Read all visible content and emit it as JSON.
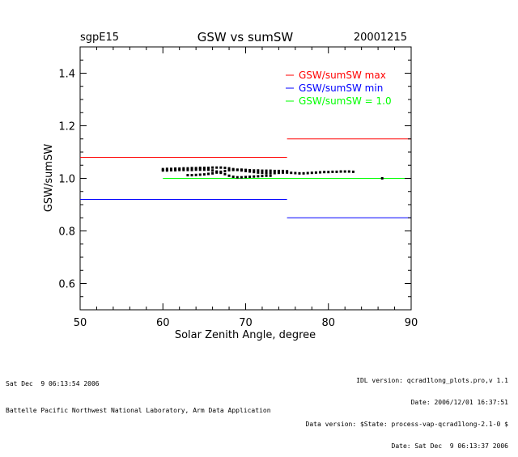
{
  "header": {
    "site": "sgpE15",
    "date": "20001215"
  },
  "footer": {
    "left_line1": "Sat Dec  9 06:13:54 2006",
    "left_line2": "Battelle Pacific Northwest National Laboratory, Arm Data Application",
    "right_line1": "IDL version: qcrad1long_plots.pro,v 1.1",
    "right_line2": "Date: 2006/12/01 16:37:51",
    "right_line3": "Data version: $State: process-vap-qcrad1long-2.1-0 $",
    "right_line4": "Date: Sat Dec  9 06:13:37 2006"
  },
  "chart_data": {
    "type": "scatter",
    "title": "GSW vs sumSW",
    "xlabel": "Solar Zenith Angle, degree",
    "ylabel": "GSW/sumSW",
    "xlim": [
      50,
      90
    ],
    "ylim": [
      0.5,
      1.5
    ],
    "x_ticks": [
      50,
      60,
      70,
      80,
      90
    ],
    "y_ticks": [
      0.6,
      0.8,
      1.0,
      1.2,
      1.4
    ],
    "x_tick_labels": [
      "50",
      "60",
      "70",
      "80",
      "90"
    ],
    "y_tick_labels": [
      "0.6",
      "0.8",
      "1.0",
      "1.2",
      "1.4"
    ],
    "grid": false,
    "legend_position": "top-right",
    "legend": [
      {
        "label": "GSW/sumSW max",
        "color": "#ff0000"
      },
      {
        "label": "GSW/sumSW min",
        "color": "#0000ff"
      },
      {
        "label": "GSW/sumSW = 1.0",
        "color": "#00ff00"
      }
    ],
    "threshold_lines": [
      {
        "series": "max",
        "color": "#ff0000",
        "segments": [
          {
            "x": [
              50,
              75
            ],
            "y": 1.08
          },
          {
            "x": [
              75,
              90
            ],
            "y": 1.15
          }
        ]
      },
      {
        "series": "min",
        "color": "#0000ff",
        "segments": [
          {
            "x": [
              50,
              75
            ],
            "y": 0.92
          },
          {
            "x": [
              75,
              90
            ],
            "y": 0.85
          }
        ]
      },
      {
        "series": "one",
        "color": "#00ff00",
        "segments": [
          {
            "x": [
              60,
              90
            ],
            "y": 1.0
          }
        ]
      }
    ],
    "points": {
      "color": "#000000",
      "x": [
        60.0,
        60.5,
        61.0,
        61.5,
        62.0,
        62.5,
        63.0,
        63.5,
        64.0,
        64.5,
        65.0,
        65.5,
        66.0,
        66.5,
        67.0,
        67.5,
        68.0,
        68.5,
        69.0,
        69.5,
        70.0,
        70.5,
        71.0,
        71.5,
        72.0,
        72.5,
        73.0,
        73.5,
        74.0,
        74.5,
        75.0,
        75.5,
        76.0,
        76.5,
        77.0,
        77.5,
        78.0,
        78.5,
        79.0,
        79.5,
        80.0,
        80.5,
        81.0,
        81.5,
        82.0,
        82.5,
        83.0,
        63.0,
        63.5,
        64.0,
        64.5,
        65.0,
        65.5,
        66.0,
        66.5,
        67.0,
        67.5,
        68.0,
        68.5,
        69.0,
        69.5,
        70.0,
        70.5,
        71.0,
        71.5,
        72.0,
        72.5,
        73.0,
        73.5,
        74.0,
        74.5,
        75.0,
        60.0,
        60.5,
        61.0,
        61.5,
        62.0,
        62.5,
        63.0,
        63.5,
        64.0,
        64.5,
        65.0,
        65.5,
        66.0,
        66.5,
        67.0,
        67.5,
        68.0,
        68.5,
        69.0,
        69.5,
        70.0,
        70.5,
        71.0,
        71.5,
        72.0,
        72.5,
        73.0,
        86.5
      ],
      "y": [
        1.035,
        1.036,
        1.036,
        1.037,
        1.037,
        1.038,
        1.038,
        1.039,
        1.039,
        1.04,
        1.04,
        1.04,
        1.041,
        1.041,
        1.041,
        1.04,
        1.038,
        1.035,
        1.032,
        1.03,
        1.028,
        1.026,
        1.024,
        1.022,
        1.021,
        1.02,
        1.02,
        1.02,
        1.021,
        1.022,
        1.022,
        1.021,
        1.02,
        1.019,
        1.019,
        1.02,
        1.021,
        1.022,
        1.023,
        1.024,
        1.024,
        1.025,
        1.025,
        1.026,
        1.026,
        1.026,
        1.025,
        1.012,
        1.012,
        1.013,
        1.014,
        1.015,
        1.017,
        1.019,
        1.022,
        1.025,
        1.028,
        1.031,
        1.032,
        1.033,
        1.033,
        1.032,
        1.031,
        1.03,
        1.03,
        1.029,
        1.029,
        1.029,
        1.028,
        1.028,
        1.028,
        1.027,
        1.03,
        1.03,
        1.031,
        1.031,
        1.032,
        1.032,
        1.032,
        1.032,
        1.033,
        1.033,
        1.033,
        1.033,
        1.03,
        1.026,
        1.021,
        1.016,
        1.01,
        1.006,
        1.004,
        1.004,
        1.005,
        1.006,
        1.007,
        1.008,
        1.009,
        1.01,
        1.01,
        1.0
      ]
    }
  }
}
